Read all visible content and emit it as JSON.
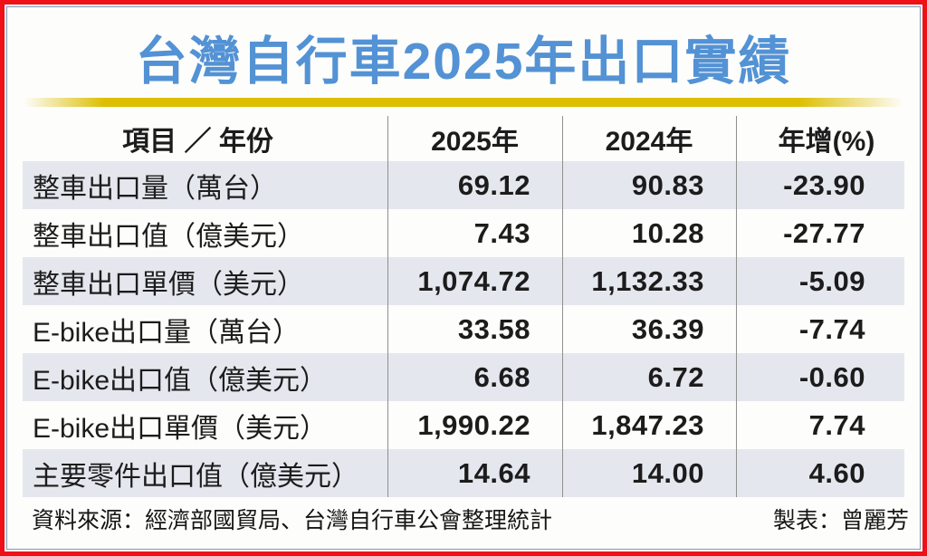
{
  "title": "台灣自行車2025年出口實績",
  "colors": {
    "title_blue": "#5392d4",
    "frame_red": "#ee1117",
    "inner_line_blue": "#7d9cb5",
    "gold_bar": "#ddbe00",
    "band_fill": "#e4e7ee",
    "separator_gray": "#8f8f8f"
  },
  "table": {
    "headers": {
      "item": "項目 ／ 年份",
      "y2025": "2025年",
      "y2024": "2024年",
      "yoy": "年增(%)"
    },
    "rows": [
      {
        "label": "整車出口量（萬台）",
        "y2025": "69.12",
        "y2024": "90.83",
        "yoy": "-23.90"
      },
      {
        "label": "整車出口值（億美元）",
        "y2025": "7.43",
        "y2024": "10.28",
        "yoy": "-27.77"
      },
      {
        "label": "整車出口單價（美元）",
        "y2025": "1,074.72",
        "y2024": "1,132.33",
        "yoy": "-5.09"
      },
      {
        "label": "E-bike出口量（萬台）",
        "y2025": "33.58",
        "y2024": "36.39",
        "yoy": "-7.74"
      },
      {
        "label": "E-bike出口值（億美元）",
        "y2025": "6.68",
        "y2024": "6.72",
        "yoy": "-0.60"
      },
      {
        "label": "E-bike出口單價（美元）",
        "y2025": "1,990.22",
        "y2024": "1,847.23",
        "yoy": "7.74"
      },
      {
        "label": "主要零件出口值（億美元）",
        "y2025": "14.64",
        "y2024": "14.00",
        "yoy": "4.60"
      }
    ]
  },
  "footer": {
    "source": "資料來源：經濟部國貿局、台灣自行車公會整理統計",
    "credit": "製表：曾麗芳"
  },
  "chart_data": {
    "type": "table",
    "title": "台灣自行車2025年出口實績",
    "columns": [
      "項目 ／ 年份",
      "2025年",
      "2024年",
      "年增(%)"
    ],
    "categories": [
      "整車出口量（萬台）",
      "整車出口值（億美元）",
      "整車出口單價（美元）",
      "E-bike出口量（萬台）",
      "E-bike出口值（億美元）",
      "E-bike出口單價（美元）",
      "主要零件出口值（億美元）"
    ],
    "series": [
      {
        "name": "2025年",
        "values": [
          69.12,
          7.43,
          1074.72,
          33.58,
          6.68,
          1990.22,
          14.64
        ]
      },
      {
        "name": "2024年",
        "values": [
          90.83,
          10.28,
          1132.33,
          36.39,
          6.72,
          1847.23,
          14.0
        ]
      },
      {
        "name": "年增(%)",
        "values": [
          -23.9,
          -27.77,
          -5.09,
          -7.74,
          -0.6,
          7.74,
          4.6
        ]
      }
    ]
  }
}
